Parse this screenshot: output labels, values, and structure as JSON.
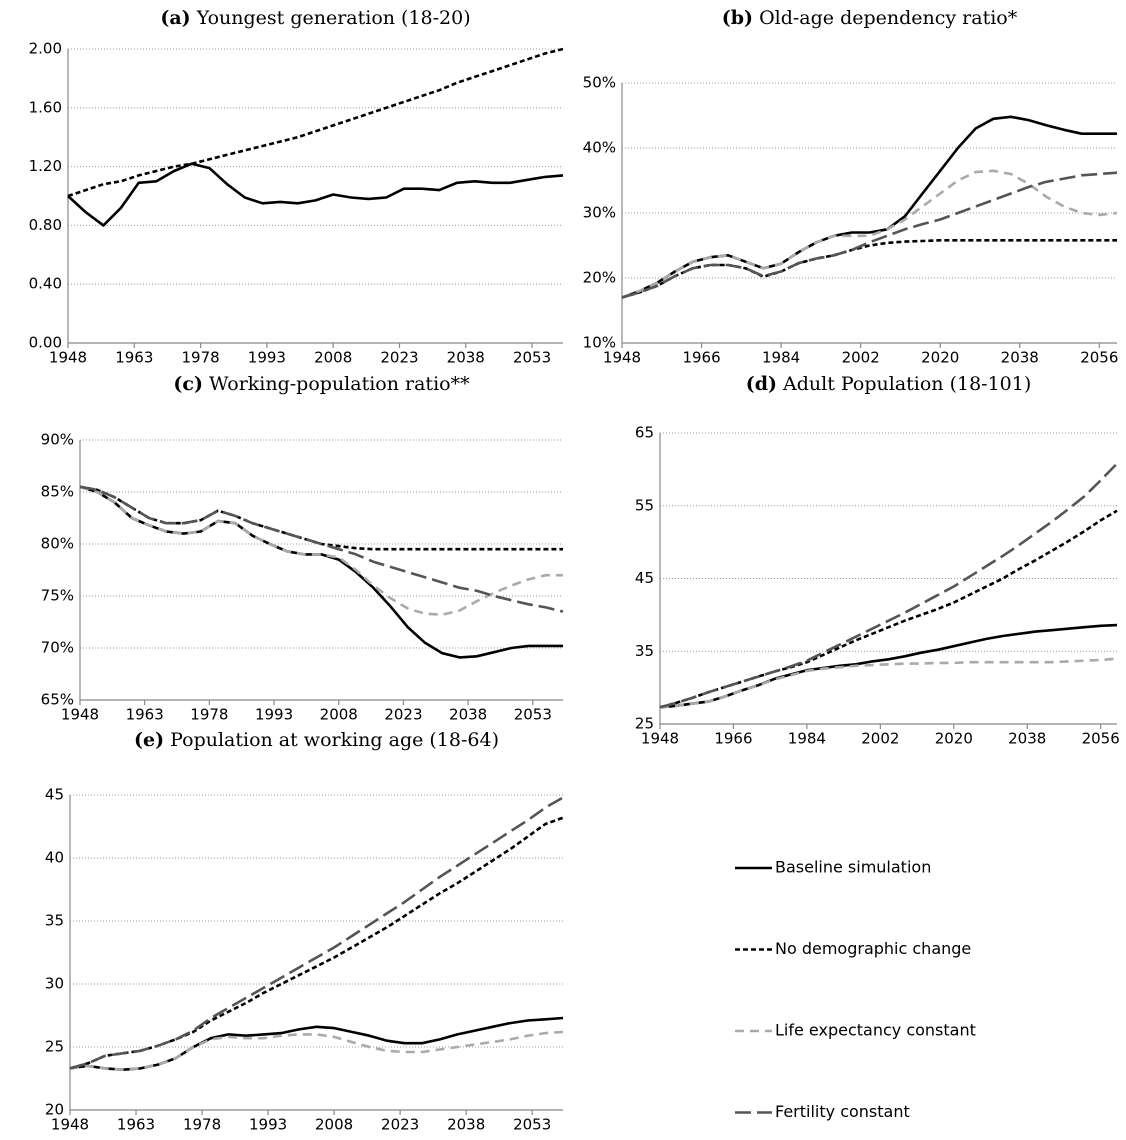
{
  "chart_data": [
    {
      "type": "line",
      "label": "(a)",
      "title": "Youngest generation (18-20)",
      "x": [
        1948,
        1952,
        1956,
        1960,
        1964,
        1968,
        1972,
        1976,
        1980,
        1984,
        1988,
        1992,
        1996,
        2000,
        2004,
        2008,
        2012,
        2016,
        2020,
        2024,
        2028,
        2032,
        2036,
        2040,
        2044,
        2048,
        2052,
        2056,
        2060
      ],
      "xlim": [
        1948,
        2060
      ],
      "xticks": [
        1948,
        1963,
        1978,
        1993,
        2008,
        2023,
        2038,
        2053
      ],
      "ylim": [
        0,
        2
      ],
      "yticks": [
        {
          "value": 0,
          "label": "0.00"
        },
        {
          "value": 0.4,
          "label": "0.40"
        },
        {
          "value": 0.8,
          "label": "0.80"
        },
        {
          "value": 1.2,
          "label": "1.20"
        },
        {
          "value": 1.6,
          "label": "1.60"
        },
        {
          "value": 2,
          "label": "2.00"
        }
      ],
      "grid": true,
      "series": [
        {
          "color": "#000000",
          "dash": "none",
          "values": [
            1.0,
            0.89,
            0.8,
            0.92,
            1.09,
            1.1,
            1.17,
            1.22,
            1.19,
            1.08,
            0.99,
            0.95,
            0.96,
            0.95,
            0.97,
            1.01,
            0.99,
            0.98,
            0.99,
            1.05,
            1.05,
            1.04,
            1.09,
            1.1,
            1.09,
            1.09,
            1.11,
            1.13,
            1.14
          ]
        },
        {
          "color": "#000000",
          "dash": "5 3",
          "values": [
            1.0,
            1.04,
            1.08,
            1.1,
            1.14,
            1.17,
            1.2,
            1.22,
            1.25,
            1.28,
            1.31,
            1.34,
            1.37,
            1.4,
            1.44,
            1.48,
            1.52,
            1.56,
            1.6,
            1.64,
            1.68,
            1.72,
            1.77,
            1.81,
            1.85,
            1.89,
            1.93,
            1.97,
            2.0
          ]
        }
      ]
    },
    {
      "type": "line",
      "label": "(b)",
      "title": "Old-age dependency ratio*",
      "x": [
        1948,
        1952,
        1956,
        1960,
        1964,
        1968,
        1972,
        1976,
        1980,
        1984,
        1988,
        1992,
        1996,
        2000,
        2004,
        2008,
        2012,
        2016,
        2020,
        2024,
        2028,
        2032,
        2036,
        2040,
        2044,
        2048,
        2052,
        2056,
        2060
      ],
      "xlim": [
        1948,
        2060
      ],
      "xticks": [
        1948,
        1966,
        1984,
        2002,
        2020,
        2038,
        2056
      ],
      "ylim": [
        10,
        50
      ],
      "yticks": [
        {
          "value": 10,
          "label": "10%"
        },
        {
          "value": 20,
          "label": "20%"
        },
        {
          "value": 30,
          "label": "30%"
        },
        {
          "value": 40,
          "label": "40%"
        },
        {
          "value": 50,
          "label": "50%"
        }
      ],
      "grid": true,
      "series": [
        {
          "color": "#000000",
          "dash": "none",
          "values": [
            17,
            18,
            19.3,
            21,
            22.5,
            23.2,
            23.5,
            22.5,
            21.5,
            22.2,
            24,
            25.5,
            26.5,
            27,
            27,
            27.5,
            29.5,
            33,
            36.5,
            40,
            43,
            44.5,
            44.8,
            44.3,
            43.5,
            42.8,
            42.2,
            42.2,
            42.2
          ]
        },
        {
          "color": "#000000",
          "dash": "5 3",
          "values": [
            17,
            17.8,
            18.8,
            20.3,
            21.5,
            22,
            22,
            21.5,
            20.2,
            21,
            22.3,
            23,
            23.5,
            24.3,
            25,
            25.4,
            25.6,
            25.7,
            25.8,
            25.8,
            25.8,
            25.8,
            25.8,
            25.8,
            25.8,
            25.8,
            25.8,
            25.8,
            25.8
          ]
        },
        {
          "color": "#aaaaaa",
          "dash": "9 6",
          "values": [
            17,
            18,
            19.3,
            21,
            22.5,
            23.2,
            23.5,
            22.5,
            21.5,
            22.2,
            24,
            25.5,
            26.5,
            26.5,
            26.5,
            27.5,
            29,
            31,
            33,
            35,
            36.3,
            36.5,
            36,
            34.5,
            32.5,
            31,
            30,
            29.7,
            30
          ]
        },
        {
          "color": "#555555",
          "dash": "16 6",
          "values": [
            17,
            17.8,
            18.8,
            20.3,
            21.5,
            22,
            22,
            21.5,
            20.3,
            21,
            22.3,
            23,
            23.5,
            24.3,
            25.5,
            26.5,
            27.5,
            28.3,
            29,
            30,
            31,
            32,
            33,
            34,
            34.8,
            35.3,
            35.8,
            36,
            36.2
          ]
        }
      ]
    },
    {
      "type": "line",
      "label": "(c)",
      "title": "Working-population ratio**",
      "x": [
        1948,
        1952,
        1956,
        1960,
        1964,
        1968,
        1972,
        1976,
        1980,
        1984,
        1988,
        1992,
        1996,
        2000,
        2004,
        2008,
        2012,
        2016,
        2020,
        2024,
        2028,
        2032,
        2036,
        2040,
        2044,
        2048,
        2052,
        2056,
        2060
      ],
      "xlim": [
        1948,
        2060
      ],
      "xticks": [
        1948,
        1963,
        1978,
        1993,
        2008,
        2023,
        2038,
        2053
      ],
      "ylim": [
        65,
        90
      ],
      "yticks": [
        {
          "value": 65,
          "label": "65%"
        },
        {
          "value": 70,
          "label": "70%"
        },
        {
          "value": 75,
          "label": "75%"
        },
        {
          "value": 80,
          "label": "80%"
        },
        {
          "value": 85,
          "label": "85%"
        },
        {
          "value": 90,
          "label": "90%"
        }
      ],
      "grid": true,
      "series": [
        {
          "color": "#000000",
          "dash": "none",
          "values": [
            85.5,
            85,
            84,
            82.5,
            81.8,
            81.2,
            81,
            81.2,
            82.2,
            82,
            80.8,
            80,
            79.3,
            79,
            79,
            78.5,
            77.3,
            75.8,
            74,
            72,
            70.5,
            69.5,
            69.1,
            69.2,
            69.6,
            70,
            70.2,
            70.2,
            70.2
          ]
        },
        {
          "color": "#000000",
          "dash": "5 3",
          "values": [
            85.5,
            85.2,
            84.5,
            83.5,
            82.5,
            82,
            82,
            82.3,
            83.2,
            82.7,
            82,
            81.5,
            81,
            80.5,
            80,
            79.8,
            79.6,
            79.5,
            79.5,
            79.5,
            79.5,
            79.5,
            79.5,
            79.5,
            79.5,
            79.5,
            79.5,
            79.5,
            79.5
          ]
        },
        {
          "color": "#aaaaaa",
          "dash": "9 6",
          "values": [
            85.5,
            85,
            84,
            82.5,
            81.8,
            81.2,
            81,
            81.2,
            82.2,
            82,
            80.8,
            80,
            79.3,
            79,
            79,
            78.7,
            77.5,
            76,
            74.8,
            73.8,
            73.3,
            73.2,
            73.6,
            74.5,
            75.3,
            76,
            76.6,
            77,
            77
          ]
        },
        {
          "color": "#555555",
          "dash": "16 6",
          "values": [
            85.5,
            85.2,
            84.5,
            83.5,
            82.5,
            82,
            82,
            82.3,
            83.2,
            82.7,
            82,
            81.5,
            81,
            80.5,
            80,
            79.5,
            79,
            78.3,
            77.8,
            77.3,
            76.8,
            76.3,
            75.8,
            75.5,
            75,
            74.6,
            74.2,
            73.9,
            73.5
          ]
        }
      ]
    },
    {
      "type": "line",
      "label": "(d)",
      "title": "Adult Population (18-101)",
      "x": [
        1948,
        1952,
        1956,
        1960,
        1964,
        1968,
        1972,
        1976,
        1980,
        1984,
        1988,
        1992,
        1996,
        2000,
        2004,
        2008,
        2012,
        2016,
        2020,
        2024,
        2028,
        2032,
        2036,
        2040,
        2044,
        2048,
        2052,
        2056,
        2060
      ],
      "xlim": [
        1948,
        2060
      ],
      "xticks": [
        1948,
        1966,
        1984,
        2002,
        2020,
        2038,
        2056
      ],
      "ylim": [
        25,
        65
      ],
      "yticks": [
        25,
        35,
        45,
        55,
        65
      ],
      "grid": true,
      "series": [
        {
          "color": "#000000",
          "dash": "none",
          "values": [
            27.3,
            27.5,
            27.8,
            28.1,
            28.8,
            29.6,
            30.3,
            31.2,
            31.8,
            32.4,
            32.7,
            33,
            33.2,
            33.6,
            33.9,
            34.3,
            34.8,
            35.2,
            35.7,
            36.2,
            36.7,
            37.1,
            37.4,
            37.7,
            37.9,
            38.1,
            38.3,
            38.5,
            38.6
          ]
        },
        {
          "color": "#000000",
          "dash": "5 3",
          "values": [
            27.3,
            27.9,
            28.6,
            29.4,
            30.1,
            30.8,
            31.5,
            32.2,
            32.8,
            33.5,
            34.5,
            35.5,
            36.5,
            37.4,
            38.3,
            39.2,
            40,
            40.8,
            41.7,
            42.8,
            43.9,
            45,
            46.3,
            47.5,
            48.8,
            50.1,
            51.5,
            53,
            54.3
          ]
        },
        {
          "color": "#aaaaaa",
          "dash": "9 6",
          "values": [
            27.3,
            27.5,
            27.8,
            28.1,
            28.8,
            29.6,
            30.3,
            31.1,
            31.7,
            32.3,
            32.6,
            32.8,
            33,
            33.1,
            33.2,
            33.3,
            33.3,
            33.4,
            33.4,
            33.5,
            33.5,
            33.5,
            33.5,
            33.5,
            33.5,
            33.6,
            33.7,
            33.8,
            34
          ]
        },
        {
          "color": "#555555",
          "dash": "16 6",
          "values": [
            27.3,
            27.9,
            28.6,
            29.4,
            30.1,
            30.8,
            31.5,
            32.2,
            32.9,
            33.7,
            34.8,
            35.9,
            37,
            38.1,
            39.2,
            40.3,
            41.5,
            42.7,
            43.9,
            45.3,
            46.7,
            48.1,
            49.6,
            51.2,
            52.8,
            54.5,
            56.3,
            58.5,
            60.8
          ]
        }
      ]
    },
    {
      "type": "line",
      "label": "(e)",
      "title": "Population at working age (18-64)",
      "x": [
        1948,
        1952,
        1956,
        1960,
        1964,
        1968,
        1972,
        1976,
        1980,
        1984,
        1988,
        1992,
        1996,
        2000,
        2004,
        2008,
        2012,
        2016,
        2020,
        2024,
        2028,
        2032,
        2036,
        2040,
        2044,
        2048,
        2052,
        2056,
        2060
      ],
      "xlim": [
        1948,
        2060
      ],
      "xticks": [
        1948,
        1963,
        1978,
        1993,
        2008,
        2023,
        2038,
        2053
      ],
      "ylim": [
        20,
        45
      ],
      "yticks": [
        20,
        25,
        30,
        35,
        40,
        45
      ],
      "grid": true,
      "legend": "right",
      "series": [
        {
          "name": "Baseline simulation",
          "color": "#000000",
          "dash": "none",
          "values": [
            23.3,
            23.5,
            23.3,
            23.2,
            23.3,
            23.6,
            24.1,
            25,
            25.7,
            26,
            25.9,
            26,
            26.1,
            26.4,
            26.6,
            26.5,
            26.2,
            25.9,
            25.5,
            25.3,
            25.3,
            25.6,
            26,
            26.3,
            26.6,
            26.9,
            27.1,
            27.2,
            27.3
          ]
        },
        {
          "name": "No demographic change",
          "color": "#000000",
          "dash": "5 3",
          "values": [
            23.3,
            23.7,
            24.3,
            24.5,
            24.7,
            25.1,
            25.6,
            26.2,
            27.1,
            27.8,
            28.5,
            29.3,
            30,
            30.7,
            31.4,
            32.1,
            32.9,
            33.7,
            34.5,
            35.4,
            36.3,
            37.2,
            38,
            38.9,
            39.8,
            40.7,
            41.7,
            42.7,
            43.2
          ]
        },
        {
          "name": "Life expectancy constant",
          "color": "#aaaaaa",
          "dash": "9 6",
          "values": [
            23.3,
            23.5,
            23.3,
            23.2,
            23.3,
            23.6,
            24.1,
            25,
            25.6,
            25.8,
            25.7,
            25.7,
            25.9,
            26,
            26,
            25.8,
            25.4,
            25,
            24.7,
            24.6,
            24.6,
            24.8,
            25,
            25.2,
            25.4,
            25.6,
            25.9,
            26.1,
            26.2
          ]
        },
        {
          "name": "Fertility constant",
          "color": "#555555",
          "dash": "16 6",
          "values": [
            23.3,
            23.7,
            24.3,
            24.5,
            24.7,
            25.1,
            25.6,
            26.3,
            27.3,
            28.1,
            28.9,
            29.7,
            30.5,
            31.3,
            32.1,
            32.9,
            33.8,
            34.7,
            35.6,
            36.5,
            37.5,
            38.5,
            39.4,
            40.3,
            41.2,
            42.1,
            43,
            44,
            44.8
          ]
        }
      ]
    }
  ]
}
